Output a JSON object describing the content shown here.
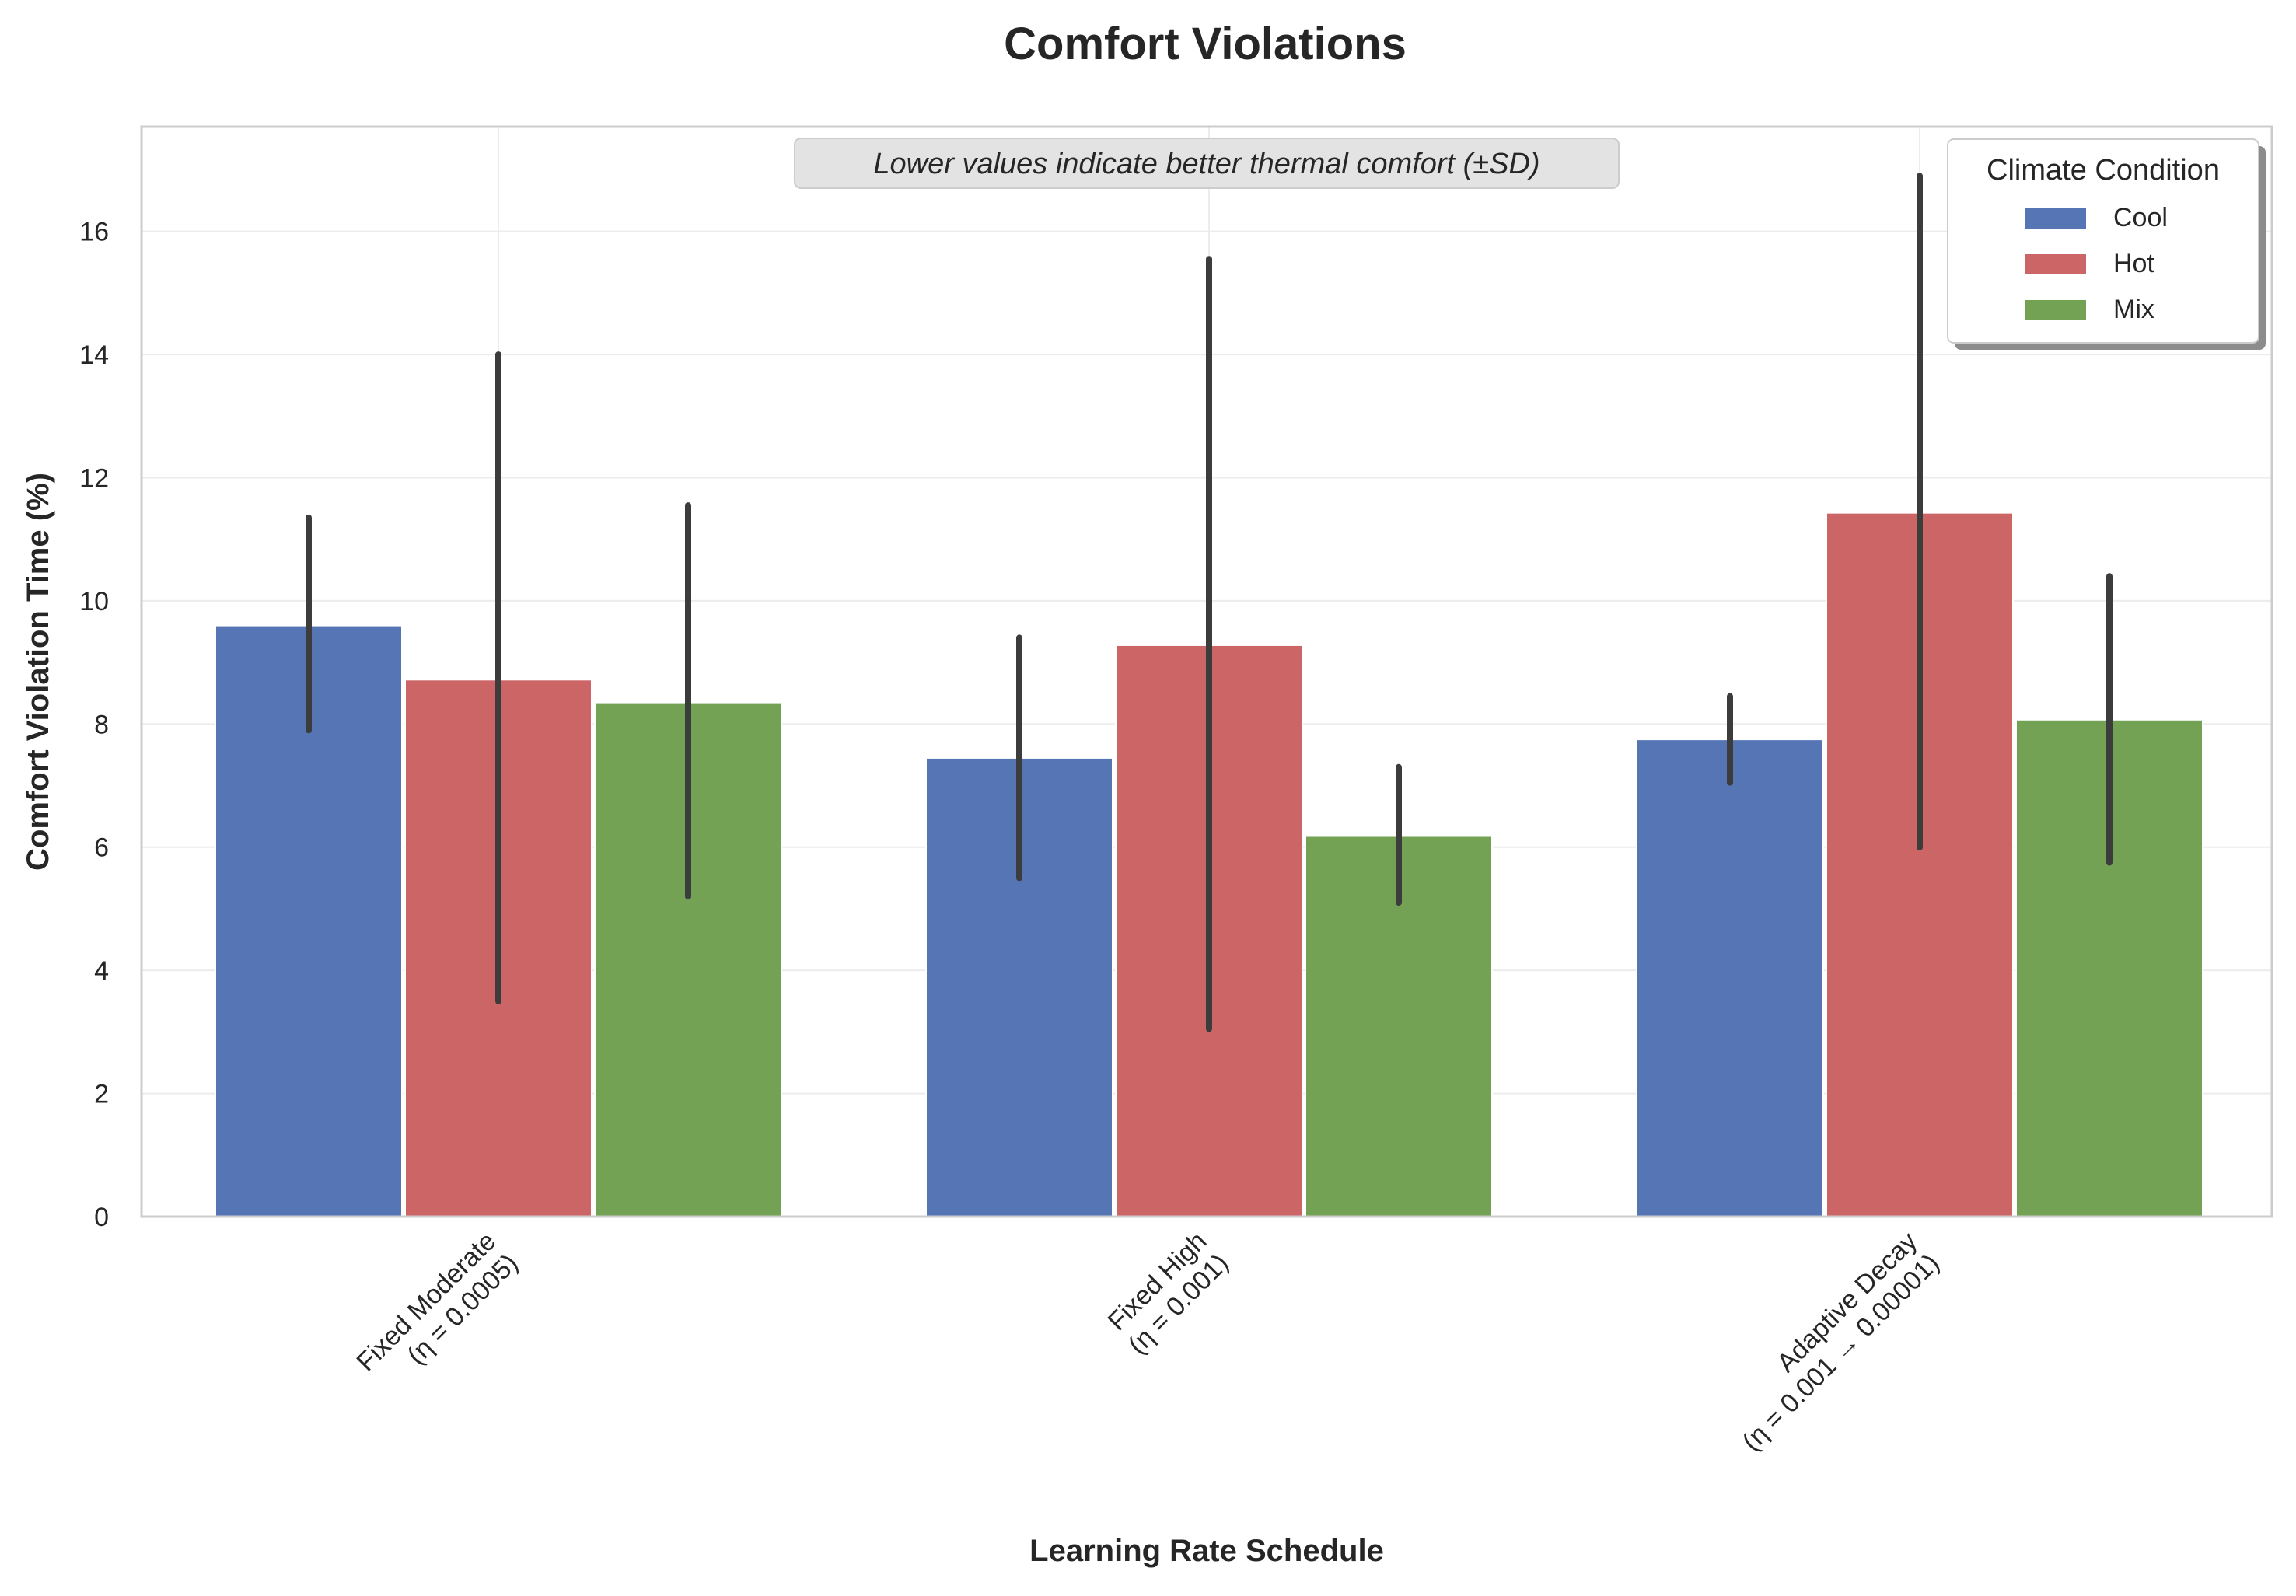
{
  "chart_data": {
    "type": "bar",
    "title": "Comfort Violations",
    "xlabel": "Learning Rate Schedule",
    "ylabel": "Comfort Violation Time (%)",
    "annotation": "Lower values indicate better thermal comfort (±SD)",
    "categories": [
      [
        "Fixed Moderate",
        "(η = 0.0005)"
      ],
      [
        "Fixed High",
        "(η = 0.001)"
      ],
      [
        "Adaptive Decay",
        "(η = 0.001 → 0.00001)"
      ]
    ],
    "ylim": [
      0,
      17.7
    ],
    "yticks": [
      0,
      2,
      4,
      6,
      8,
      10,
      12,
      14,
      16
    ],
    "grid": true,
    "legend": {
      "title": "Climate Condition",
      "placement": "top-right"
    },
    "series": [
      {
        "name": "Cool",
        "color": "#5575b4",
        "values": [
          9.6,
          7.45,
          7.75
        ],
        "err_low": [
          7.9,
          5.5,
          7.05
        ],
        "err_high": [
          11.35,
          9.4,
          8.45
        ]
      },
      {
        "name": "Hot",
        "color": "#cc6566",
        "values": [
          8.72,
          9.28,
          11.43
        ],
        "err_low": [
          3.5,
          3.05,
          6.0
        ],
        "err_high": [
          14.0,
          15.55,
          16.9
        ]
      },
      {
        "name": "Mix",
        "color": "#74a254",
        "values": [
          8.35,
          6.18,
          8.07
        ],
        "err_low": [
          5.2,
          5.1,
          5.75
        ],
        "err_high": [
          11.55,
          7.3,
          10.4
        ]
      }
    ]
  }
}
